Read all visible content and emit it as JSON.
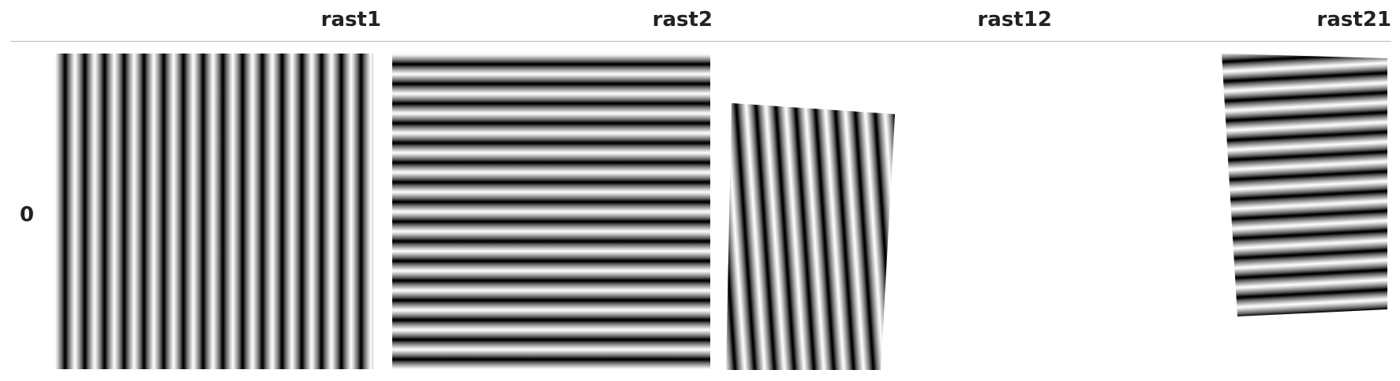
{
  "table": {
    "columns": [
      "rast1",
      "rast2",
      "rast12",
      "rast21"
    ],
    "row_label": "0"
  }
}
